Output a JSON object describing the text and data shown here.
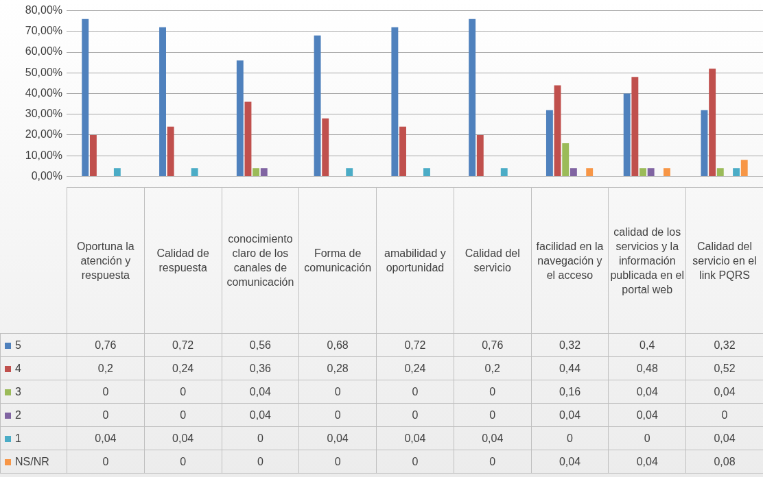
{
  "chart_data": {
    "type": "bar",
    "categories": [
      "Oportuna la atención y respuesta",
      "Calidad de respuesta",
      "conocimiento claro de los canales de comunicación",
      "Forma de comunicación",
      "amabilidad y oportunidad",
      "Calidad del servicio",
      "facilidad en la navegación y el acceso",
      "calidad de los servicios y la información publicada en el portal web",
      "Calidad del servicio en el link PQRS"
    ],
    "series": [
      {
        "name": "5",
        "color": "#4f81bd",
        "values": [
          0.76,
          0.72,
          0.56,
          0.68,
          0.72,
          0.76,
          0.32,
          0.4,
          0.32
        ],
        "value_labels": [
          "0,76",
          "0,72",
          "0,56",
          "0,68",
          "0,72",
          "0,76",
          "0,32",
          "0,4",
          "0,32"
        ]
      },
      {
        "name": "4",
        "color": "#c0504d",
        "values": [
          0.2,
          0.24,
          0.36,
          0.28,
          0.24,
          0.2,
          0.44,
          0.48,
          0.52
        ],
        "value_labels": [
          "0,2",
          "0,24",
          "0,36",
          "0,28",
          "0,24",
          "0,2",
          "0,44",
          "0,48",
          "0,52"
        ]
      },
      {
        "name": "3",
        "color": "#9bbb59",
        "values": [
          0,
          0,
          0.04,
          0,
          0,
          0,
          0.16,
          0.04,
          0.04
        ],
        "value_labels": [
          "0",
          "0",
          "0,04",
          "0",
          "0",
          "0",
          "0,16",
          "0,04",
          "0,04"
        ]
      },
      {
        "name": "2",
        "color": "#8064a2",
        "values": [
          0,
          0,
          0.04,
          0,
          0,
          0,
          0.04,
          0.04,
          0
        ],
        "value_labels": [
          "0",
          "0",
          "0,04",
          "0",
          "0",
          "0",
          "0,04",
          "0,04",
          "0"
        ]
      },
      {
        "name": "1",
        "color": "#4bacc6",
        "values": [
          0.04,
          0.04,
          0,
          0.04,
          0.04,
          0.04,
          0,
          0,
          0.04
        ],
        "value_labels": [
          "0,04",
          "0,04",
          "0",
          "0,04",
          "0,04",
          "0,04",
          "0",
          "0",
          "0,04"
        ]
      },
      {
        "name": "NS/NR",
        "color": "#f79646",
        "values": [
          0,
          0,
          0,
          0,
          0,
          0,
          0.04,
          0.04,
          0.08
        ],
        "value_labels": [
          "0",
          "0",
          "0",
          "0",
          "0",
          "0",
          "0,04",
          "0,04",
          "0,08"
        ]
      }
    ],
    "ylim": [
      0,
      0.8
    ],
    "yticks": [
      {
        "value": 0,
        "label": "0,00%"
      },
      {
        "value": 0.1,
        "label": "10,00%"
      },
      {
        "value": 0.2,
        "label": "20,00%"
      },
      {
        "value": 0.3,
        "label": "30,00%"
      },
      {
        "value": 0.4,
        "label": "40,00%"
      },
      {
        "value": 0.5,
        "label": "50,00%"
      },
      {
        "value": 0.6,
        "label": "60,00%"
      },
      {
        "value": 0.7,
        "label": "70,00%"
      },
      {
        "value": 0.8,
        "label": "80,00%"
      }
    ],
    "grid": "y",
    "legend": "bottom"
  }
}
